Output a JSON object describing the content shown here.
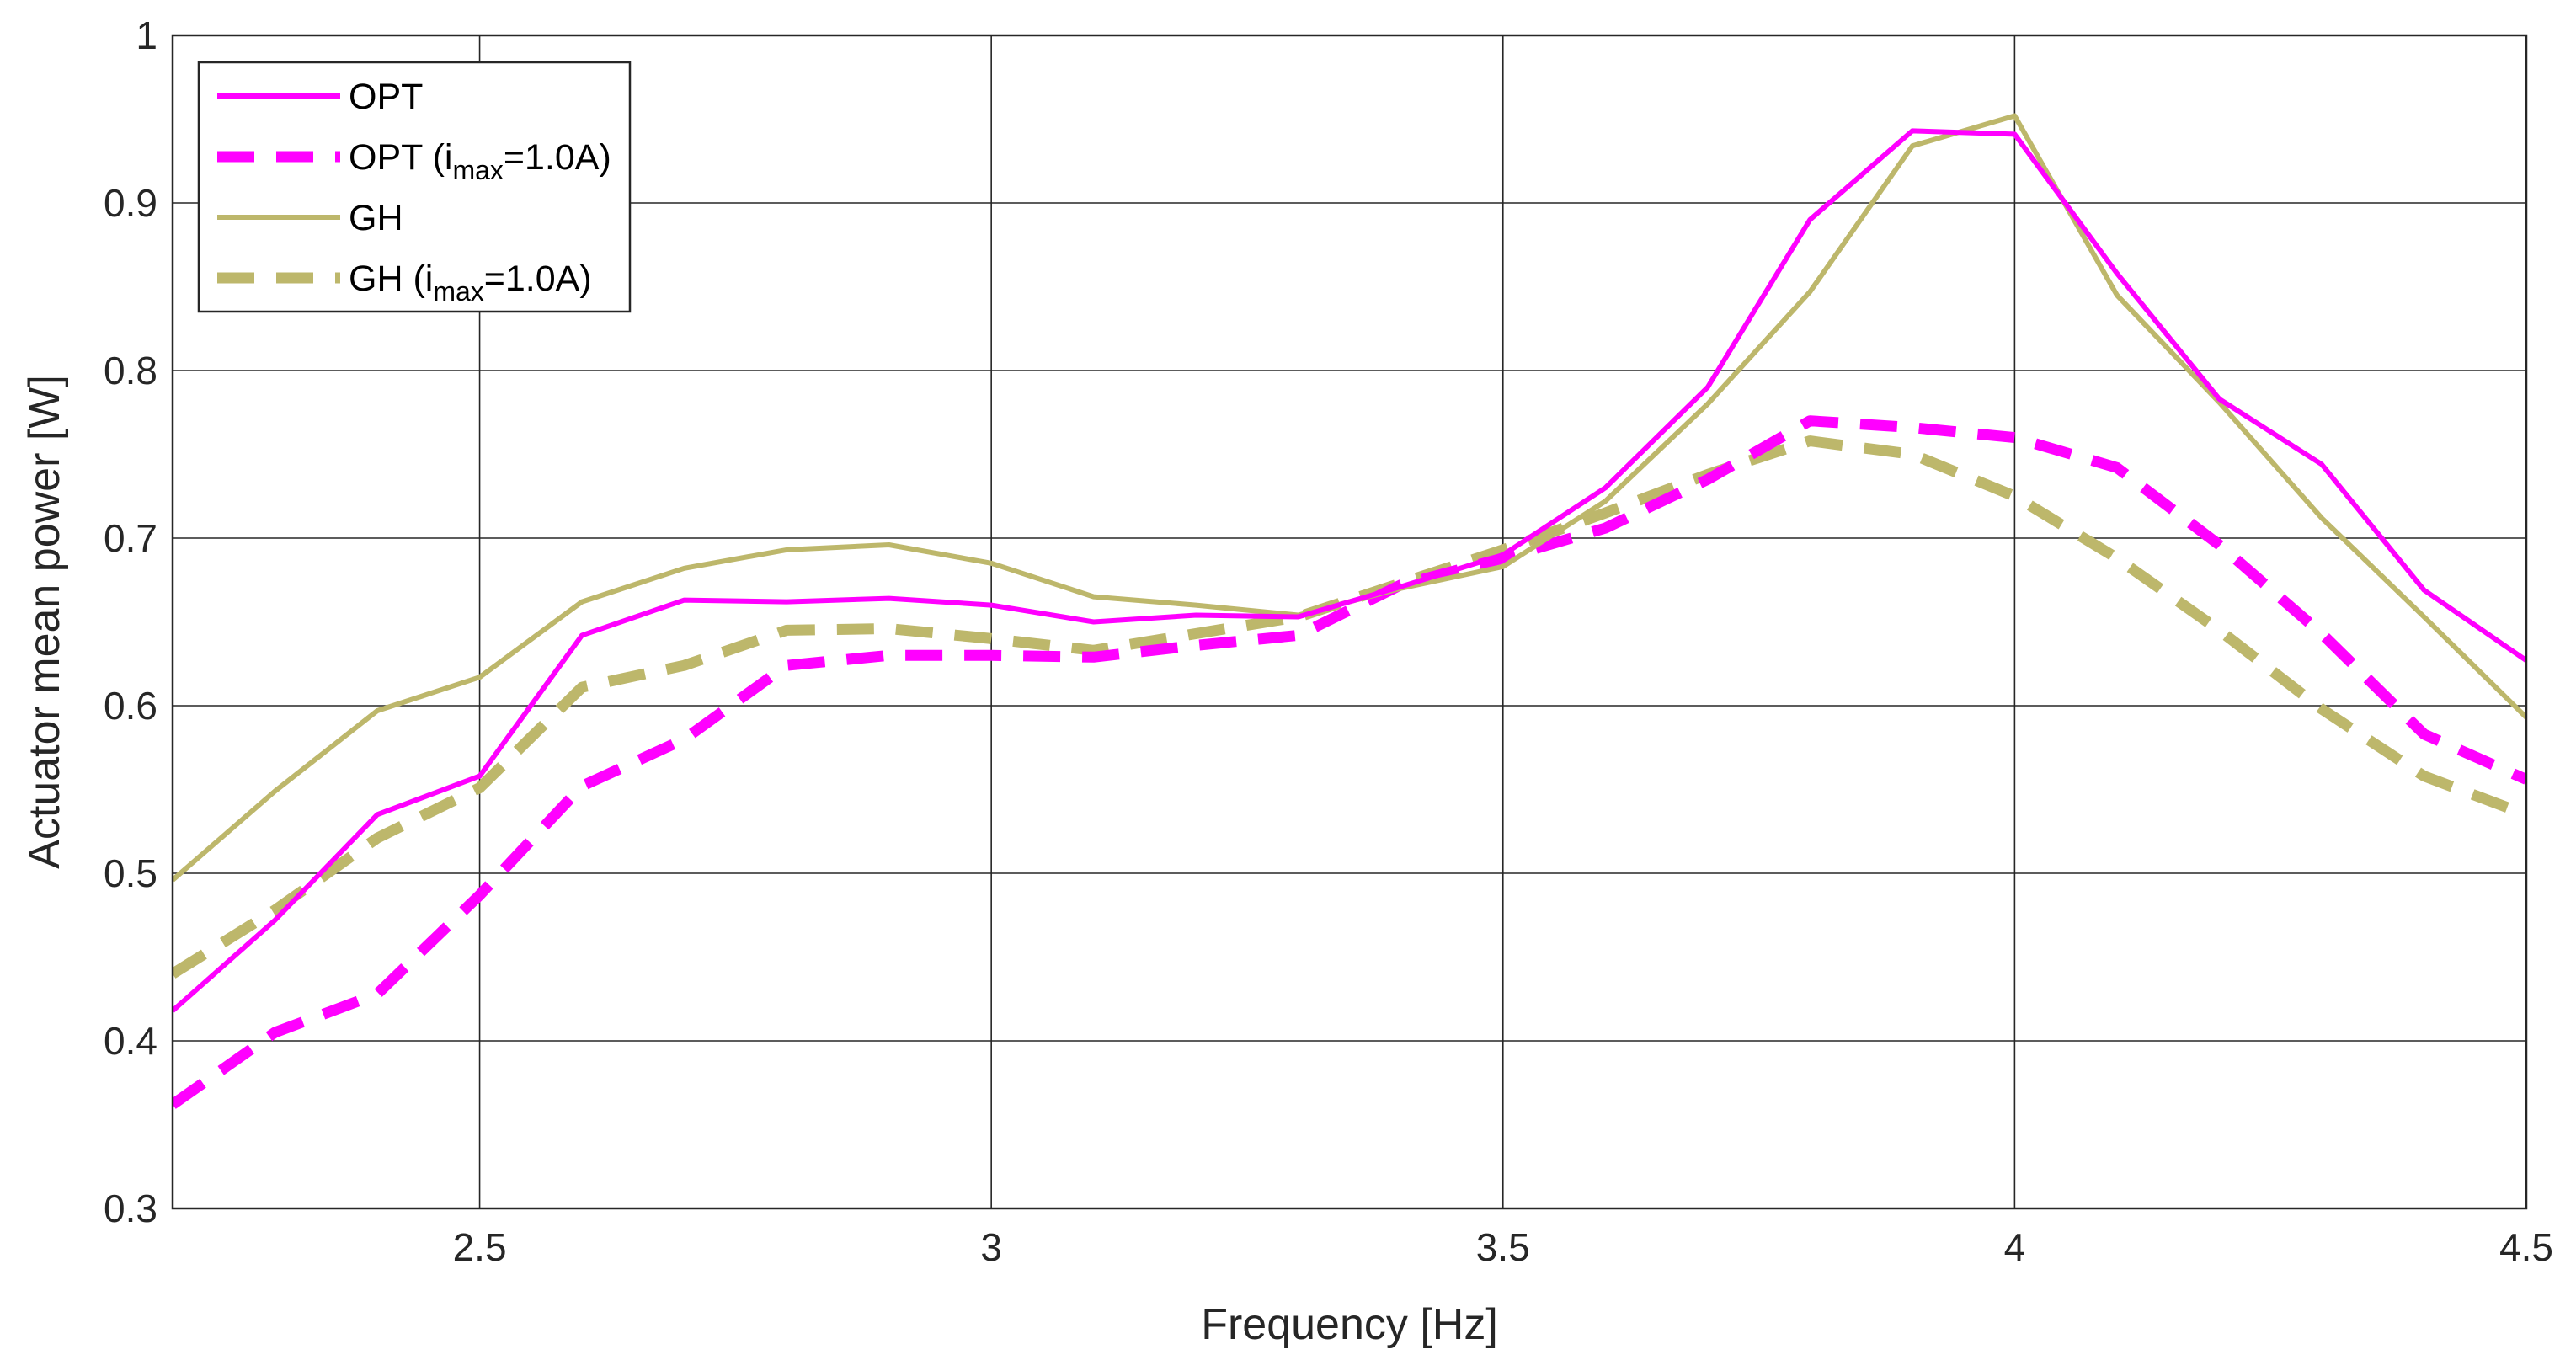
{
  "chart_data": {
    "type": "line",
    "title": "",
    "xlabel": "Frequency [Hz]",
    "ylabel": "Actuator mean power [W]",
    "xlim": [
      2.2,
      4.5
    ],
    "ylim": [
      0.3,
      1.0
    ],
    "xticks": [
      2.5,
      3,
      3.5,
      4,
      4.5
    ],
    "xtick_labels": [
      "2.5",
      "3",
      "3.5",
      "4",
      "4.5"
    ],
    "yticks": [
      0.3,
      0.4,
      0.5,
      0.6,
      0.7,
      0.8,
      0.9,
      1.0
    ],
    "ytick_labels": [
      "0.3",
      "0.4",
      "0.5",
      "0.6",
      "0.7",
      "0.8",
      "0.9",
      "1"
    ],
    "grid": true,
    "legend_position": "top-left",
    "x": [
      2.2,
      2.3,
      2.4,
      2.5,
      2.6,
      2.7,
      2.8,
      2.9,
      3.0,
      3.1,
      3.2,
      3.3,
      3.4,
      3.5,
      3.6,
      3.7,
      3.8,
      3.9,
      4.0,
      4.1,
      4.2,
      4.3,
      4.4,
      4.5
    ],
    "series": [
      {
        "name": "OPT",
        "legend_main": "OPT",
        "legend_sub": "",
        "legend_after": "",
        "color": "#ff00ff",
        "dashed": false,
        "values": [
          0.418,
          0.472,
          0.535,
          0.558,
          0.642,
          0.663,
          0.662,
          0.664,
          0.66,
          0.65,
          0.654,
          0.653,
          0.671,
          0.69,
          0.73,
          0.79,
          0.89,
          0.943,
          0.941,
          0.858,
          0.783,
          0.744,
          0.669,
          0.627
        ]
      },
      {
        "name": "OPT (i_max=1.0A)",
        "legend_main": "OPT (i",
        "legend_sub": "max",
        "legend_after": "=1.0A)",
        "color": "#ff00ff",
        "dashed": true,
        "values": [
          0.362,
          0.405,
          0.428,
          0.487,
          0.552,
          0.58,
          0.624,
          0.63,
          0.63,
          0.629,
          0.636,
          0.642,
          0.672,
          0.688,
          0.706,
          0.735,
          0.77,
          0.766,
          0.76,
          0.742,
          0.696,
          0.643,
          0.583,
          0.556
        ]
      },
      {
        "name": "GH",
        "legend_main": "GH",
        "legend_sub": "",
        "legend_after": "",
        "color": "#bdb76b",
        "dashed": false,
        "values": [
          0.496,
          0.549,
          0.597,
          0.617,
          0.662,
          0.682,
          0.693,
          0.696,
          0.685,
          0.665,
          0.66,
          0.654,
          0.67,
          0.683,
          0.722,
          0.78,
          0.847,
          0.934,
          0.952,
          0.845,
          0.781,
          0.712,
          0.653,
          0.593
        ]
      },
      {
        "name": "GH (i_max=1.0A)",
        "legend_main": "GH (i",
        "legend_sub": "max",
        "legend_after": "=1.0A)",
        "color": "#bdb76b",
        "dashed": true,
        "values": [
          0.44,
          0.478,
          0.521,
          0.551,
          0.611,
          0.624,
          0.645,
          0.646,
          0.64,
          0.633,
          0.643,
          0.653,
          0.673,
          0.693,
          0.715,
          0.738,
          0.758,
          0.75,
          0.725,
          0.688,
          0.645,
          0.598,
          0.558,
          0.535
        ]
      }
    ]
  }
}
